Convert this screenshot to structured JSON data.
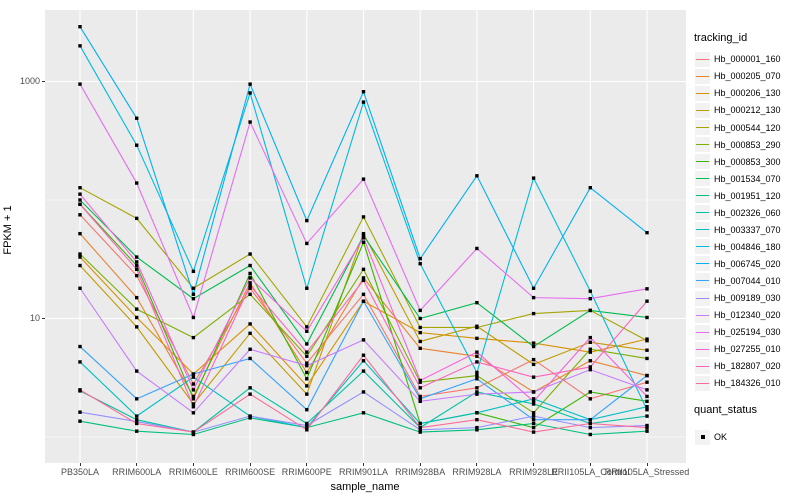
{
  "figure": {
    "background": "#FFFFFF",
    "panel_background": "#EBEBEB",
    "gridline_color": "#FFFFFF",
    "tick_text_color": "#4D4D4D",
    "marker_color": "#000000"
  },
  "y_axis": {
    "title": "FPKM + 1",
    "ticks": [
      {
        "label": "1000",
        "value": 1000
      },
      {
        "label": "10",
        "value": 10
      }
    ]
  },
  "x_axis": {
    "title": "sample_name"
  },
  "legend": {
    "tracking_title": "tracking_id",
    "quant_title": "quant_status",
    "quant_items": [
      {
        "label": "OK",
        "marker": "black-square"
      }
    ]
  },
  "chart_data": {
    "type": "line",
    "title": "",
    "xlabel": "sample_name",
    "ylabel": "FPKM + 1",
    "y_scale": "log10",
    "ylim": [
      0.61,
      4050
    ],
    "grid": true,
    "major_gridlines_y": [
      10,
      1000
    ],
    "minor_gridlines_y": [
      1,
      100
    ],
    "legend_position": "right",
    "marker": "small-black-square",
    "categories": [
      "PB350LA",
      "RRIM600LA",
      "RRIM600LE",
      "RRIM600SE",
      "RRIM600PE",
      "RRIM901LA",
      "RRIM928BA",
      "RRIM928LA",
      "RRIM928LE",
      "RRII105LA_Control",
      "RRII105LA_Stressed"
    ],
    "series": [
      {
        "name": "Hb_000001_160",
        "color": "#F8766D",
        "values": [
          75,
          23,
          2.8,
          18,
          4.2,
          16,
          2.2,
          2.6,
          4.5,
          2.1,
          2.9
        ]
      },
      {
        "name": "Hb_000205_070",
        "color": "#EA8331",
        "values": [
          52,
          15,
          2.2,
          20,
          3.5,
          22,
          5.6,
          4.8,
          2.4,
          4.4,
          3.3
        ]
      },
      {
        "name": "Hb_000206_130",
        "color": "#D89000",
        "values": [
          33,
          10.2,
          3.4,
          9,
          2.7,
          14,
          7.6,
          6.8,
          6.2,
          5.2,
          6.7
        ]
      },
      {
        "name": "Hb_000212_130",
        "color": "#C09B00",
        "values": [
          28,
          8.5,
          1.9,
          7.5,
          2.3,
          52,
          6.4,
          8.6,
          4.1,
          6.3,
          5.4
        ]
      },
      {
        "name": "Hb_000544_120",
        "color": "#A3A500",
        "values": [
          127,
          70,
          18,
          35,
          8.5,
          72,
          8.4,
          8.4,
          11,
          11.7,
          6.5
        ]
      },
      {
        "name": "Hb_000853_290",
        "color": "#7CAE00",
        "values": [
          35,
          12,
          6.9,
          16,
          4.8,
          26,
          2.9,
          3.3,
          1.6,
          5.5,
          4.6
        ]
      },
      {
        "name": "Hb_000853_300",
        "color": "#39B600",
        "values": [
          92,
          28,
          2.1,
          24,
          3.1,
          44,
          1.3,
          1.6,
          1.2,
          2.4,
          2.0
        ]
      },
      {
        "name": "Hb_001534_070",
        "color": "#00BB4E",
        "values": [
          100,
          33,
          14.7,
          28,
          6.1,
          50,
          10,
          13.6,
          5.8,
          11.7,
          10.2
        ]
      },
      {
        "name": "Hb_001951_120",
        "color": "#00BF7D",
        "values": [
          1.36,
          1.12,
          1.05,
          1.45,
          1.2,
          1.6,
          1.1,
          1.15,
          1.3,
          1.05,
          1.12
        ]
      },
      {
        "name": "Hb_002326_060",
        "color": "#00C1A3",
        "values": [
          2.45,
          1.4,
          1.1,
          2.6,
          1.3,
          3.6,
          1.2,
          2.4,
          1.9,
          1.3,
          1.5
        ]
      },
      {
        "name": "Hb_003337_070",
        "color": "#00BFC4",
        "values": [
          4.3,
          1.5,
          3.2,
          1.5,
          1.2,
          4.4,
          1.3,
          1.6,
          2.1,
          1.4,
          1.8
        ]
      },
      {
        "name": "Hb_004846_180",
        "color": "#00BAE0",
        "values": [
          2000,
          290,
          25,
          800,
          18,
          670,
          29,
          3.5,
          153,
          17,
          1.7
        ]
      },
      {
        "name": "Hb_006745_020",
        "color": "#00B0F6",
        "values": [
          2900,
          490,
          16,
          950,
          67,
          820,
          32,
          160,
          18,
          127,
          53
        ]
      },
      {
        "name": "Hb_007044_010",
        "color": "#35A2FF",
        "values": [
          5.8,
          2.1,
          3.4,
          4.6,
          1.7,
          14,
          2.1,
          3.1,
          1.4,
          1.4,
          3.3
        ]
      },
      {
        "name": "Hb_009189_030",
        "color": "#9590FF",
        "values": [
          1.62,
          1.35,
          1.1,
          1.5,
          1.25,
          2.4,
          1.15,
          1.2,
          1.5,
          1.2,
          1.25
        ]
      },
      {
        "name": "Hb_012340_020",
        "color": "#C77CFF",
        "values": [
          18,
          3.6,
          1.6,
          5.5,
          4.0,
          6.6,
          2.0,
          2.3,
          2.4,
          3.7,
          2.5
        ]
      },
      {
        "name": "Hb_025194_030",
        "color": "#E76BF3",
        "values": [
          950,
          139,
          10.2,
          455,
          43,
          150,
          11.7,
          39,
          15,
          14.7,
          17.8
        ]
      },
      {
        "name": "Hb_027255_010",
        "color": "#FA62DB",
        "values": [
          112,
          30,
          2.5,
          22,
          7.8,
          48,
          3.0,
          5.2,
          2.0,
          6.9,
          2.2
        ]
      },
      {
        "name": "Hb_182807_020",
        "color": "#FF62BC",
        "values": [
          92,
          26,
          1.8,
          19,
          5.2,
          21,
          2.6,
          4.3,
          3.2,
          3.9,
          14
        ]
      },
      {
        "name": "Hb_184326_010",
        "color": "#FF6A98",
        "values": [
          2.5,
          1.3,
          1.1,
          2.3,
          1.15,
          4.9,
          1.2,
          1.4,
          1.1,
          1.3,
          1.2
        ]
      }
    ]
  }
}
